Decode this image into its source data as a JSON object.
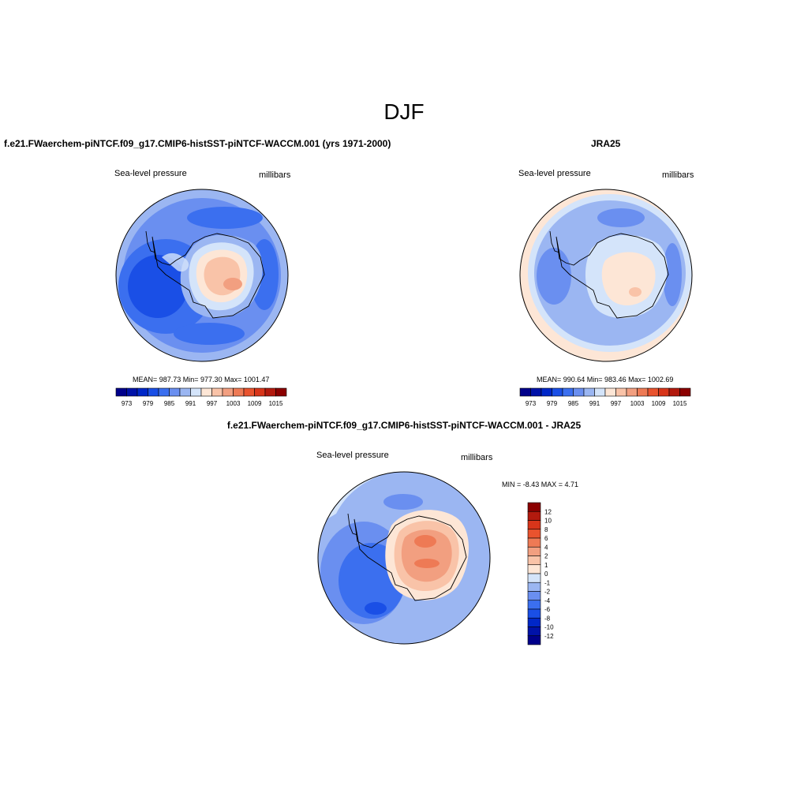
{
  "title": "DJF",
  "panels": [
    {
      "title": "f.e21.FWaerchem-piNTCF.f09_g17.CMIP6-histSST-piNTCF-WACCM.001 (yrs 1971-2000)",
      "variable": "Sea-level pressure",
      "units": "millibars",
      "stats": "MEAN= 987.73  Min= 977.30  Max= 1001.47"
    },
    {
      "title": "JRA25",
      "variable": "Sea-level pressure",
      "units": "millibars",
      "stats": "MEAN= 990.64  Min= 983.46  Max= 1002.69"
    },
    {
      "title": "f.e21.FWaerchem-piNTCF.f09_g17.CMIP6-histSST-piNTCF-WACCM.001 - JRA25",
      "variable": "Sea-level pressure",
      "units": "millibars",
      "stats": "MIN =  -8.43 MAX =   4.71"
    }
  ],
  "abs_colorbar": {
    "colors": [
      "#00008b",
      "#0012a8",
      "#0027c8",
      "#1a4fe6",
      "#3b6fef",
      "#6a8ff0",
      "#9bb6f2",
      "#d4e4fa",
      "#fde6d6",
      "#f9c3a8",
      "#f29f80",
      "#ee7a55",
      "#e9532e",
      "#d8351a",
      "#b31a0e",
      "#8b0000"
    ],
    "labels": [
      "973",
      "979",
      "985",
      "991",
      "997",
      "1003",
      "1009",
      "1015"
    ]
  },
  "diff_colorbar": {
    "colors": [
      "#8b0000",
      "#b31a0e",
      "#d8351a",
      "#e9532e",
      "#ee7a55",
      "#f29f80",
      "#f9c3a8",
      "#fde6d6",
      "#d4e4fa",
      "#9bb6f2",
      "#6a8ff0",
      "#3b6fef",
      "#1a4fe6",
      "#0027c8",
      "#0012a8",
      "#00008b"
    ],
    "labels": [
      "12",
      "10",
      "8",
      "6",
      "4",
      "2",
      "1",
      "0",
      "-1",
      "-2",
      "-4",
      "-6",
      "-8",
      "-10",
      "-12"
    ]
  }
}
